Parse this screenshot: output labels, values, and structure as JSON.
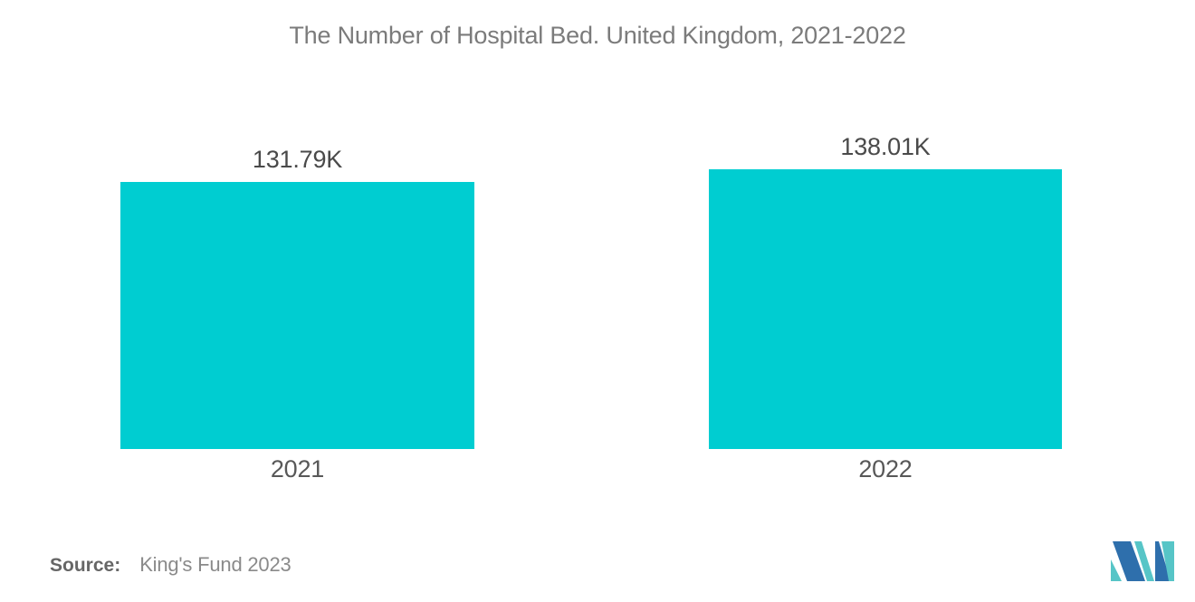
{
  "title": "The Number of Hospital Bed. United Kingdom, 2021-2022",
  "chart_data": {
    "type": "bar",
    "title": "The Number of Hospital Bed. United Kingdom, 2021-2022",
    "categories": [
      "2021",
      "2022"
    ],
    "values": [
      131.79,
      138.01
    ],
    "unit": "K",
    "value_labels": [
      "131.79K",
      "138.01K"
    ],
    "bar_color": "#00CDD1",
    "xlabel": "",
    "ylabel": "",
    "ylim": [
      0,
      138.01
    ],
    "grid": false,
    "legend": false,
    "axes_visible": false
  },
  "source": {
    "label": "Source:",
    "text": "King's Fund 2023"
  },
  "logo": {
    "name": "mordor-intelligence-logo",
    "blue": "#2E6FAC",
    "teal": "#57C5C7"
  },
  "colors": {
    "background": "#ffffff",
    "title_text": "#7b7b7b",
    "value_label_text": "#4a4a4a",
    "category_label_text": "#585858",
    "source_label_text": "#666666",
    "source_value_text": "#8a8a8a"
  }
}
